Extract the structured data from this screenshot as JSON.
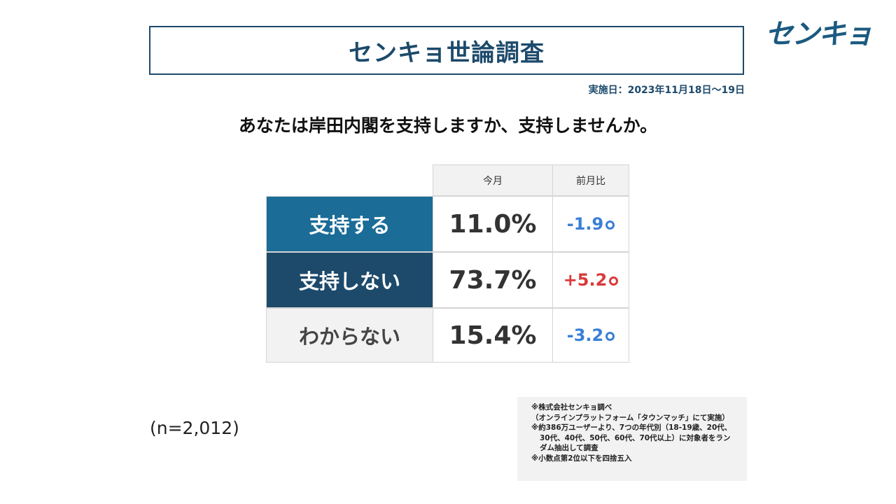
{
  "header": {
    "title": "センキョ世論調査",
    "logo_text": "センキョ",
    "date": "実施日：2023年11月18日〜19日"
  },
  "question": "あなたは岸田内閣を支持しますか、支持しませんか。",
  "table": {
    "col_headers": [
      "今月",
      "前月比"
    ]
  },
  "colors": {
    "support": "#1b6c97",
    "not_support": "#1d4a6b",
    "unknown": "#f2f2f2",
    "down": "#3a7fd5",
    "up": "#d83a3a"
  },
  "chart_data": {
    "type": "table",
    "title": "センキョ世論調査",
    "columns": [
      "今月",
      "前月比"
    ],
    "rows": [
      {
        "label": "支持する",
        "value": "11.0%",
        "change": "-1.9",
        "direction": "down"
      },
      {
        "label": "支持しない",
        "value": "73.7%",
        "change": "+5.2",
        "direction": "up"
      },
      {
        "label": "わからない",
        "value": "15.4%",
        "change": "-3.2",
        "direction": "down"
      }
    ]
  },
  "sample": "(n=2,012)",
  "notes": [
    "※株式会社センキョ調べ",
    "（オンラインプラットフォーム「タウンマッチ」にて実施）",
    "※約386万ユーザーより、7つの年代別（18-19歳、20代、",
    "30代、40代、50代、60代、70代以上）に対象者をラン",
    "ダム抽出して調査",
    "※小数点第2位以下を四捨五入"
  ]
}
